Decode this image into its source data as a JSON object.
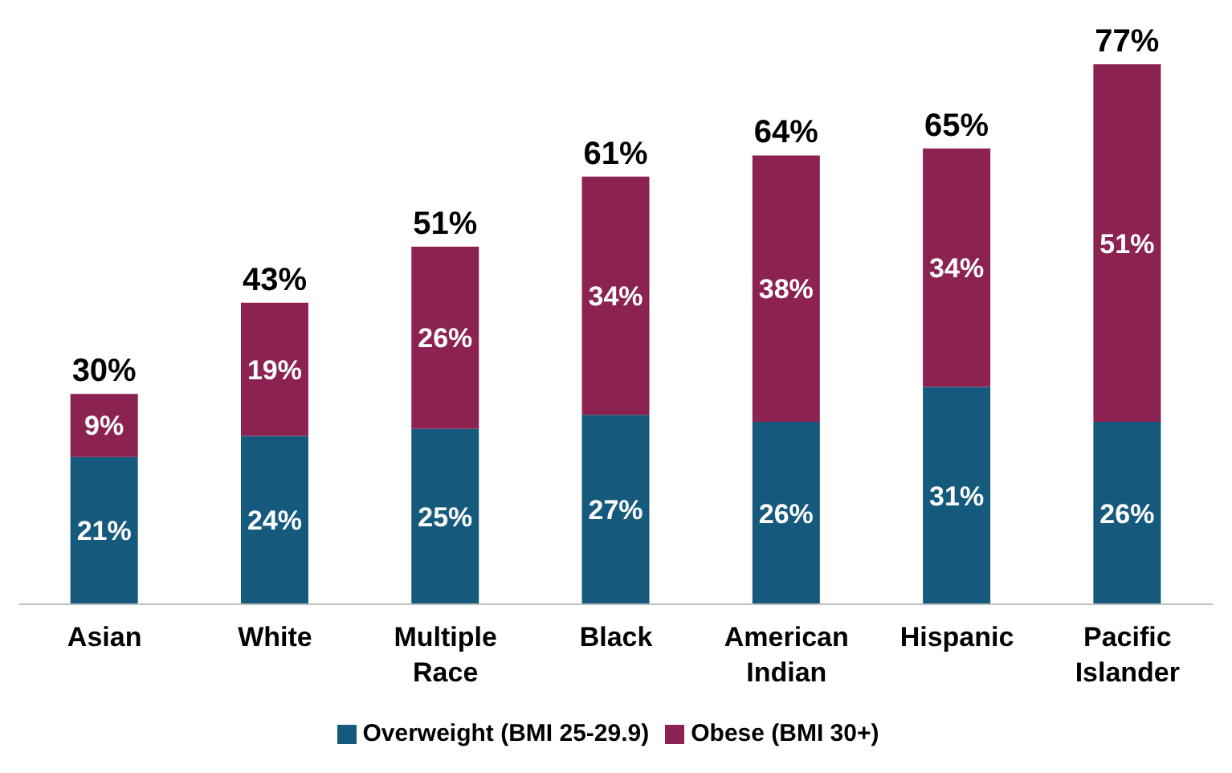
{
  "chart_data": {
    "type": "bar",
    "stacked": true,
    "categories": [
      "Asian",
      "White",
      "Multiple Race",
      "Black",
      "American Indian",
      "Hispanic",
      "Pacific Islander"
    ],
    "series": [
      {
        "name": "Overweight (BMI 25-29.9)",
        "color": "#155a7d",
        "values": [
          21,
          24,
          25,
          27,
          26,
          31,
          26
        ],
        "value_labels": [
          "21%",
          "24%",
          "25%",
          "27%",
          "26%",
          "31%",
          "26%"
        ]
      },
      {
        "name": "Obese (BMI 30+)",
        "color": "#8b2252",
        "values": [
          9,
          19,
          26,
          34,
          38,
          34,
          51
        ],
        "value_labels": [
          "9%",
          "19%",
          "26%",
          "34%",
          "38%",
          "34%",
          "51%"
        ]
      }
    ],
    "totals": [
      "30%",
      "43%",
      "51%",
      "61%",
      "64%",
      "65%",
      "77%"
    ],
    "legend": "bottom",
    "grid": false
  }
}
